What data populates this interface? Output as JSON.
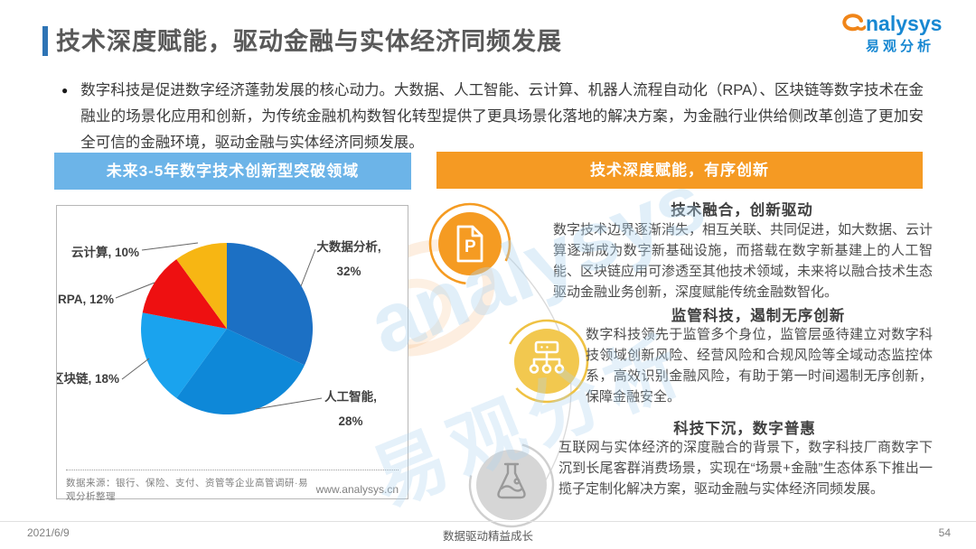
{
  "page": {
    "title": "技术深度赋能，驱动金融与实体经济同频发展",
    "accent_color": "#2E74B5",
    "watermark_en": "analysys",
    "watermark_cn": "易观分析"
  },
  "logo": {
    "brand": "nalysys",
    "brand_cn": "易观分析"
  },
  "intro": {
    "bullet": "●",
    "text": "数字科技是促进数字经济蓬勃发展的核心动力。大数据、人工智能、云计算、机器人流程自动化（RPA）、区块链等数字技术在金融业的场景化应用和创新，为传统金融机构数智化转型提供了更具场景化落地的解决方案，为金融行业供给侧改革创造了更加安全可信的金融环境，驱动金融与实体经济同频发展。"
  },
  "left_panel": {
    "banner": "未来3-5年数字技术创新型突破领域",
    "banner_color": "#6CB4E8",
    "source_note": "数据来源：银行、保险、支付、资管等企业高管调研·易观分析整理",
    "website": "www.analysys.cn"
  },
  "chart_data": {
    "type": "pie",
    "title": "未来3-5年数字技术创新型突破领域",
    "labels": [
      "大数据分析",
      "人工智能",
      "区块链",
      "RPA",
      "云计算"
    ],
    "values": [
      32,
      28,
      18,
      12,
      10
    ],
    "unit": "%",
    "colors": [
      "#1C70C4",
      "#0E88D8",
      "#1AA3EE",
      "#EE1011",
      "#F7B613"
    ],
    "start_angle_deg": 0,
    "direction": "clockwise",
    "legend": "none",
    "label_format": "{label}, {value}%"
  },
  "right_panel": {
    "banner": "技术深度赋能，有序创新",
    "banner_color": "#F59A23",
    "sections": [
      {
        "icon": "document-p-icon",
        "circle_color": "#F59B22",
        "heading": "技术融合，创新驱动",
        "body": "数字技术边界逐渐消失，相互关联、共同促进，如大数据、云计算逐渐成为数字新基础设施，而搭载在数字新基建上的人工智能、区块链应用可渗透至其他技术领域，未来将以融合技术生态驱动金融业务创新，深度赋能传统金融数智化。"
      },
      {
        "icon": "org-chart-icon",
        "circle_color": "#F2C84F",
        "heading": "监管科技，遏制无序创新",
        "body": "数字科技领先于监管多个身位，监管层亟待建立对数字科技领域创新风险、经营风险和合规风险等全域动态监控体系，高效识别金融风险，有助于第一时间遏制无序创新，保障金融安全。"
      },
      {
        "icon": "flask-icon",
        "circle_color": "#D6D6D6",
        "heading": "科技下沉，数字普惠",
        "body": "互联网与实体经济的深度融合的背景下，数字科技厂商数字下沉到长尾客群消费场景，实现在“场景+金融”生态体系下推出一揽子定制化解决方案，驱动金融与实体经济同频发展。"
      }
    ]
  },
  "footer": {
    "date": "2021/6/9",
    "slogan": "数据驱动精益成长",
    "page_number": "54"
  }
}
